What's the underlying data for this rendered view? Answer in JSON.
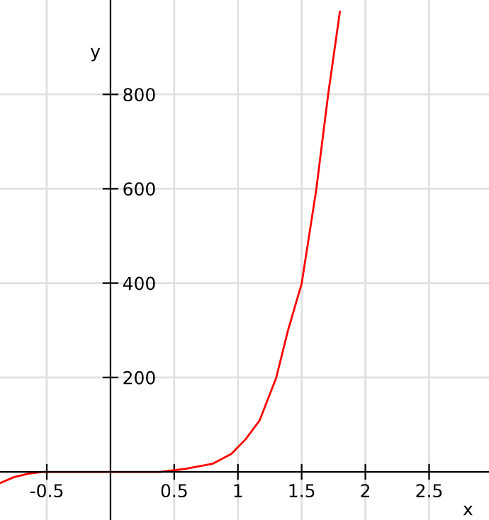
{
  "chart_data": {
    "type": "line",
    "xlabel": "x",
    "ylabel": "y",
    "series": [
      {
        "color": "#ff0000",
        "x": [
          -0.867,
          -0.756,
          -0.644,
          -0.533,
          -0.5,
          0,
          0.39,
          0.578,
          0.8,
          0.948,
          1.06,
          1.17,
          1.3,
          1.392,
          1.5,
          1.615,
          1.708,
          1.8
        ],
        "values": [
          -24,
          -11,
          -4,
          0,
          0,
          0,
          0,
          6,
          17,
          38,
          69,
          109,
          199,
          299,
          399,
          599,
          800,
          975
        ]
      }
    ],
    "xlim": [
      -0.867,
      2.97
    ],
    "ylim": [
      -102,
      1000
    ],
    "xticks": [
      -0.5,
      0.5,
      1,
      1.5,
      2,
      2.5
    ],
    "yticks": [
      200,
      400,
      600,
      800
    ],
    "grid": true,
    "line_style": "solid",
    "marker": "none"
  }
}
